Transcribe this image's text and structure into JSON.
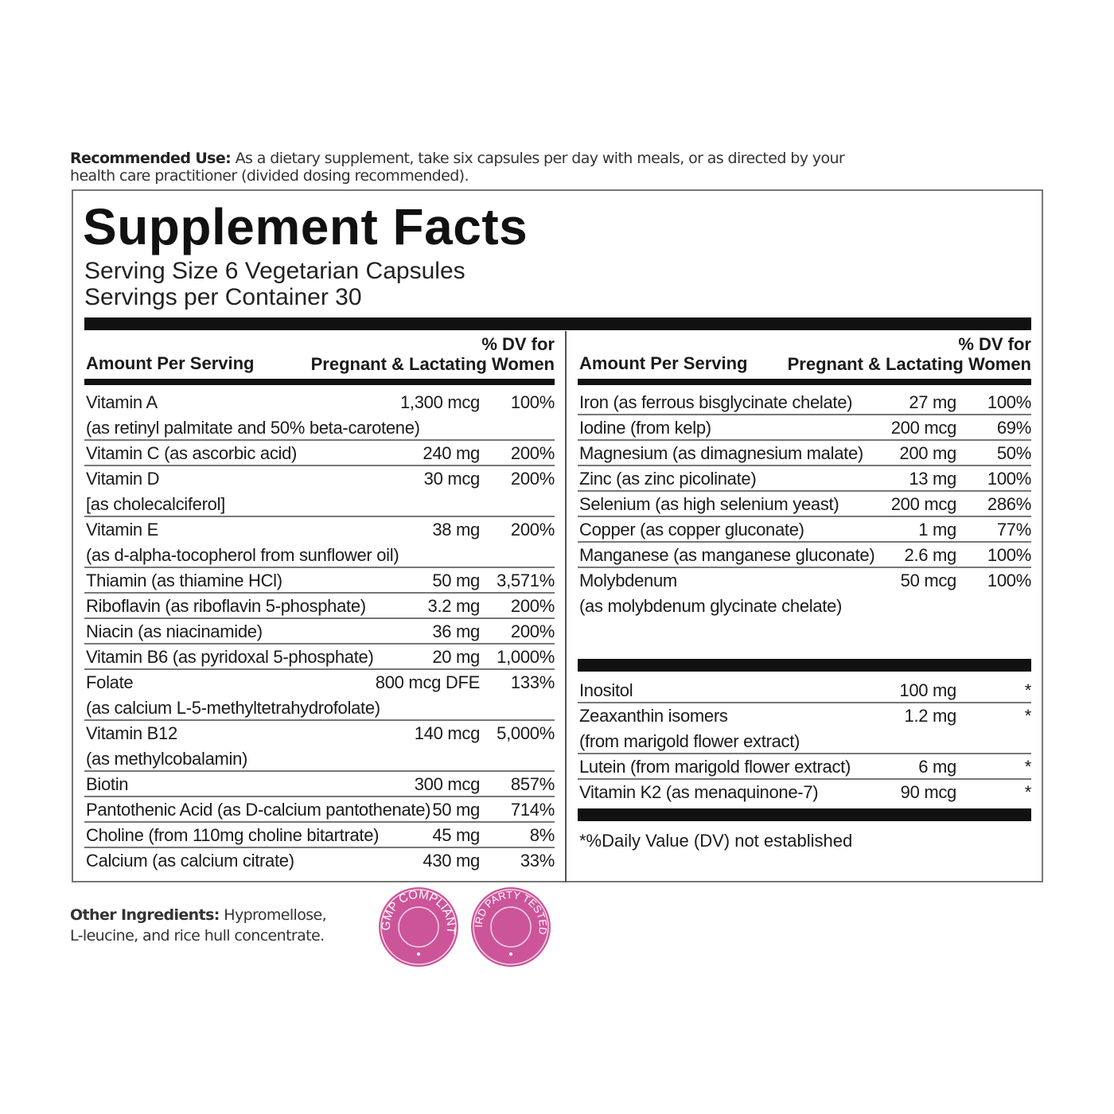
{
  "recommended_use": {
    "label": "Recommended Use:",
    "text": " As a dietary supplement, take six capsules per day with meals, or as directed by your health care practitioner (divided dosing recommended)."
  },
  "title": "Supplement Facts",
  "serving_size": "Serving Size 6 Vegetarian Capsules",
  "servings_per_container": "Servings per Container 30",
  "header": {
    "amount": "Amount Per Serving",
    "dv_line1": "% DV for",
    "dv_line2": "Pregnant & Lactating Women"
  },
  "left_rows": [
    {
      "name": "Vitamin A",
      "sub": "(as retinyl palmitate and 50% beta-carotene)",
      "amount": "1,300 mcg",
      "dv": "100%"
    },
    {
      "name": "Vitamin C (as ascorbic acid)",
      "amount": "240 mg",
      "dv": "200%"
    },
    {
      "name": "Vitamin D",
      "sub": "[as cholecalciferol]",
      "amount": "30 mcg",
      "dv": "200%"
    },
    {
      "name": "Vitamin E",
      "sub": "(as d-alpha-tocopherol from sunflower oil)",
      "amount": "38 mg",
      "dv": "200%"
    },
    {
      "name": "Thiamin (as thiamine HCl)",
      "amount": "50 mg",
      "dv": "3,571%"
    },
    {
      "name": "Riboflavin (as riboflavin 5-phosphate)",
      "amount": "3.2 mg",
      "dv": "200%"
    },
    {
      "name": "Niacin (as niacinamide)",
      "amount": "36 mg",
      "dv": "200%"
    },
    {
      "name": "Vitamin B6 (as pyridoxal 5-phosphate)",
      "amount": "20 mg",
      "dv": "1,000%"
    },
    {
      "name": "Folate",
      "sub": "(as calcium L-5-methyltetrahydrofolate)",
      "amount": "800 mcg DFE",
      "dv": "133%"
    },
    {
      "name": "Vitamin B12",
      "sub": "(as methylcobalamin)",
      "amount": "140 mcg",
      "dv": "5,000%"
    },
    {
      "name": "Biotin",
      "amount": "300 mcg",
      "dv": "857%"
    },
    {
      "name": "Pantothenic Acid (as D-calcium pantothenate)",
      "amount": "50 mg",
      "dv": "714%"
    },
    {
      "name": "Choline (from 110mg choline bitartrate)",
      "amount": "45 mg",
      "dv": "8%"
    },
    {
      "name": "Calcium (as calcium citrate)",
      "amount": "430 mg",
      "dv": "33%"
    }
  ],
  "right_rows": [
    {
      "name": "Iron (as ferrous bisglycinate chelate)",
      "amount": "27 mg",
      "dv": "100%"
    },
    {
      "name": "Iodine (from kelp)",
      "amount": "200 mcg",
      "dv": "69%"
    },
    {
      "name": "Magnesium (as dimagnesium malate)",
      "amount": "200 mg",
      "dv": "50%"
    },
    {
      "name": "Zinc (as zinc picolinate)",
      "amount": "13 mg",
      "dv": "100%"
    },
    {
      "name": "Selenium (as high selenium yeast)",
      "amount": "200 mcg",
      "dv": "286%"
    },
    {
      "name": "Copper (as copper gluconate)",
      "amount": "1 mg",
      "dv": "77%"
    },
    {
      "name": "Manganese (as manganese gluconate)",
      "amount": "2.6 mg",
      "dv": "100%"
    },
    {
      "name": "Molybdenum",
      "sub": "(as molybdenum glycinate chelate)",
      "amount": "50 mcg",
      "dv": "100%"
    }
  ],
  "right_other_rows": [
    {
      "name": "Inositol",
      "amount": "100 mg",
      "dv": "*"
    },
    {
      "name": "Zeaxanthin isomers",
      "sub": "(from marigold flower extract)",
      "amount": "1.2 mg",
      "dv": "*"
    },
    {
      "name": "Lutein (from marigold flower extract)",
      "amount": "6 mg",
      "dv": "*"
    },
    {
      "name": "Vitamin K2 (as menaquinone-7)",
      "amount": "90 mcg",
      "dv": "*"
    }
  ],
  "footnote": "*%Daily Value (DV) not established",
  "other_ingredients": {
    "label": "Other Ingredients:",
    "line1": " Hypromellose,",
    "line2": "L-leucine, and rice hull concentrate."
  },
  "badges": [
    {
      "text": "GMP COMPLIANT"
    },
    {
      "text": "THIRD PARTY TESTED"
    }
  ],
  "colors": {
    "badge": "#cc5599",
    "rule": "#111111"
  }
}
